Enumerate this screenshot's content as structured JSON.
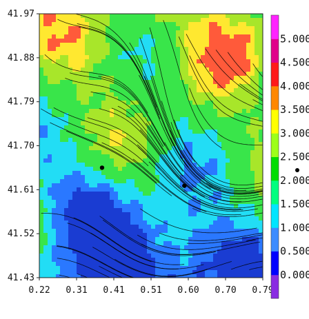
{
  "chart_data": {
    "type": "heatmap",
    "title": "",
    "xlabel": "",
    "ylabel": "",
    "xlim": [
      0.22,
      0.79
    ],
    "ylim": [
      41.43,
      41.97
    ],
    "x_ticks": [
      "0.22",
      "0.31",
      "0.41",
      "0.51",
      "0.60",
      "0.70",
      "0.79"
    ],
    "y_ticks": [
      "41.97",
      "41.88",
      "41.79",
      "41.70",
      "41.61",
      "41.52",
      "41.43"
    ],
    "overlay": "streamlines",
    "points": [
      {
        "x": 0.38,
        "y": 41.655
      },
      {
        "x": 0.59,
        "y": 41.618
      }
    ],
    "colorbar": {
      "levels": [
        "5.000",
        "4.500",
        "4.000",
        "3.500",
        "3.000",
        "2.500",
        "2.000",
        "1.500",
        "1.000",
        "0.500",
        "0.000"
      ],
      "colors": [
        "#8a2be2",
        "#0000ff",
        "#3c8cff",
        "#00e5ff",
        "#00ff7f",
        "#00dd00",
        "#9dff1a",
        "#ffff00",
        "#ff8800",
        "#ff1a1a",
        "#e0008a",
        "#ff22ff"
      ]
    },
    "field_colors": {
      "deep": "#1a3cd2",
      "low": "#2a78ff",
      "mid": "#22ddf5",
      "high": "#39e54a",
      "peak": "#a8e62a",
      "max": "#ffe830",
      "hot": "#ff5a3a"
    }
  }
}
